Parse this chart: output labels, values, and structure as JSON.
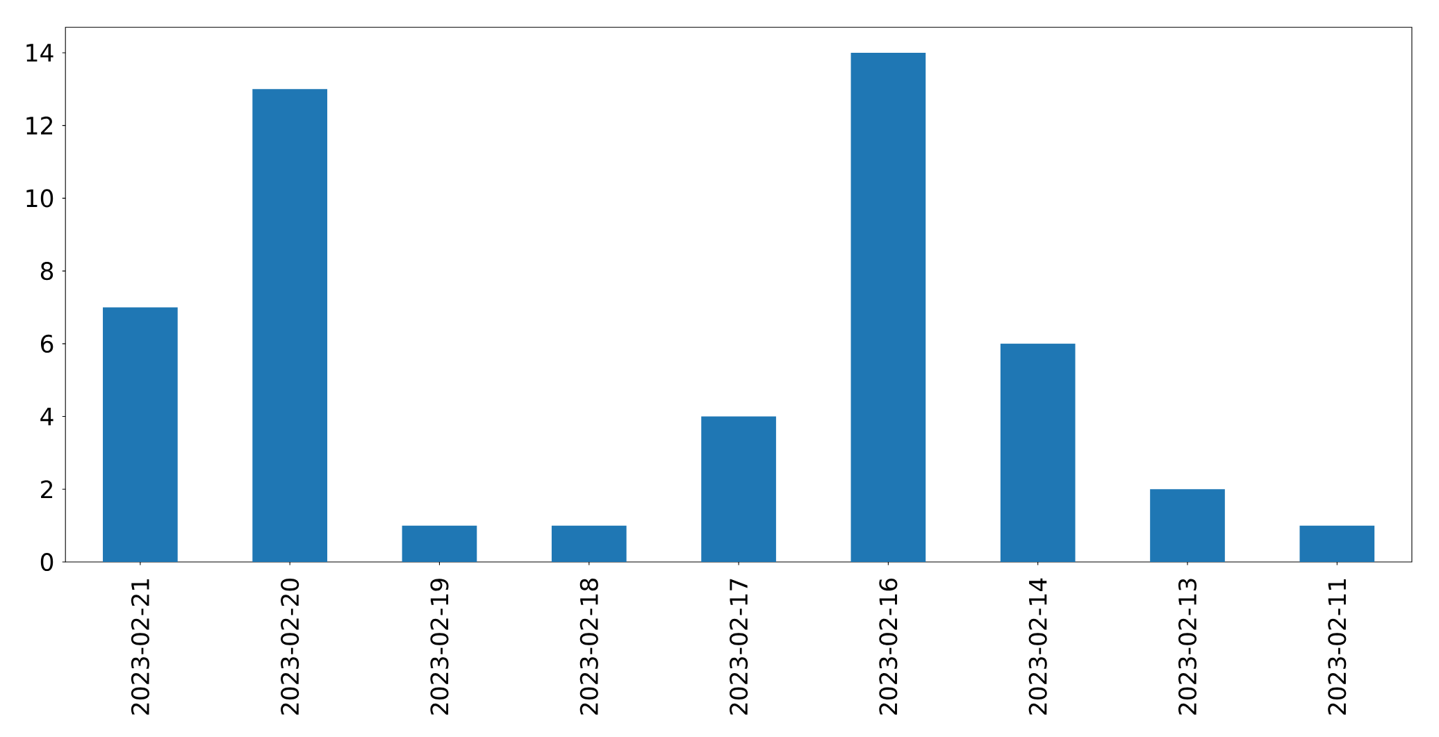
{
  "chart_data": {
    "type": "bar",
    "categories": [
      "2023-02-21",
      "2023-02-20",
      "2023-02-19",
      "2023-02-18",
      "2023-02-17",
      "2023-02-16",
      "2023-02-14",
      "2023-02-13",
      "2023-02-11"
    ],
    "values": [
      7,
      13,
      1,
      1,
      4,
      14,
      6,
      2,
      1
    ],
    "color": "#1f77b4",
    "ylim": [
      0,
      14.7
    ],
    "yticks": [
      0,
      2,
      4,
      6,
      8,
      10,
      12,
      14
    ]
  }
}
